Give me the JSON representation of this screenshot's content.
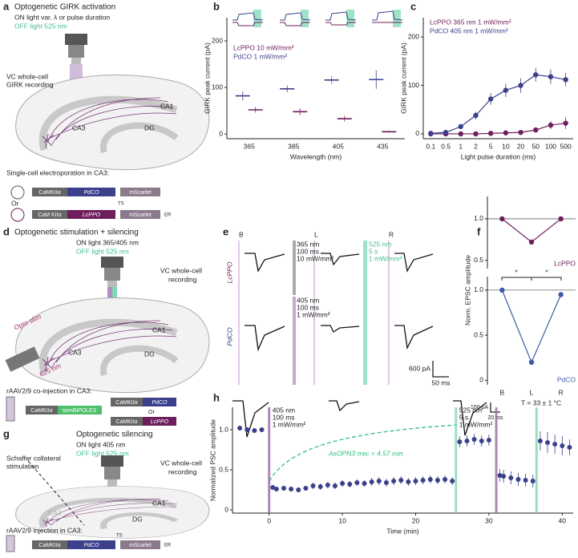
{
  "panels": {
    "a": {
      "letter": "a",
      "title": "Optogenetic GIRK activation",
      "on": "ON light var. λ or pulse duration",
      "off": "OFF light 525 nm",
      "rec1": "VC whole-cell",
      "rec2": "GIRK recording",
      "ca1": "CA1",
      "ca3": "CA3",
      "dg": "DG",
      "electro": "Single-cell electroporation in CA3:",
      "or": "Or",
      "c1": [
        "CaMKIIα",
        "PdCO",
        "mScarlet"
      ],
      "c2": [
        "CaM KIIα",
        "LcPPO",
        "mScarlet"
      ],
      "ts": "TS",
      "er": "ER"
    },
    "b": {
      "letter": "b"
    },
    "c": {
      "letter": "c"
    },
    "d": {
      "letter": "d",
      "title": "Optogenetic stimulation + silencing",
      "on": "ON light 365/405 nm",
      "off": "OFF light 525 nm",
      "rec1": "VC whole-cell",
      "rec2": "recording",
      "stim": "Opto stim",
      "nm": "625 nm",
      "ca1": "CA1",
      "ca3": "CA3",
      "dg": "DG",
      "inj": "rAAV2/9 co-injection in CA3:",
      "c1": [
        "CaMKIIα",
        "somBiPOLES"
      ],
      "c2": [
        "CaMKIIα",
        "PdCO"
      ],
      "or": "Or",
      "c3": [
        "CaMKIIα",
        "LcPPO"
      ]
    },
    "e": {
      "letter": "e",
      "B": "B",
      "L": "L",
      "R": "R",
      "lc": "LcPPO",
      "pd": "PdCO",
      "l365": [
        "365 nm",
        "100 ms",
        "10 mW/mm²"
      ],
      "l525": [
        "525 nm",
        "5 s",
        "1 mW/mm²"
      ],
      "l405": [
        "405 nm",
        "100 ms",
        "1 mW/mm²"
      ],
      "sy": "600 pA",
      "sx": "50 ms"
    },
    "f": {
      "letter": "f",
      "stars": [
        "*",
        "*"
      ]
    },
    "g": {
      "letter": "g",
      "title": "Optogenetic silencing",
      "on": "ON light 405 nm",
      "off": "OFF light 525 nm",
      "sc1": "Schaffer collateral",
      "sc2": "stimulation",
      "rec1": "VC whole-cell",
      "rec2": "recording",
      "ca1": "CA1",
      "ca3": "CA3",
      "dg": "DG",
      "inj": "rAAV2/9 injection in CA3:",
      "c1": [
        "CaMKIIα",
        "PdCO",
        "mScarlet"
      ],
      "ts": "TS",
      "er": "ER"
    },
    "h": {
      "letter": "h",
      "temp": "T = 33 ± 1 °C",
      "sy": "100 pA",
      "sx": "20 ms",
      "curve": "AsOPN3 τrec = 4.57 min"
    }
  },
  "chart_data": [
    {
      "type": "dot",
      "xlabel": "Wavelength (nm)",
      "ylabel": "GIRK peak current (pA)",
      "categories": [
        "365",
        "385",
        "405",
        "435"
      ],
      "ylim": [
        -10,
        250
      ],
      "yticks": [
        0,
        100,
        200
      ],
      "legend": "upper left",
      "series": [
        {
          "name": "LcPPO 10 mW/mm²",
          "color": "#6e1e5c",
          "values": [
            52,
            48,
            33,
            5
          ],
          "errors": [
            6,
            7,
            6,
            2
          ]
        },
        {
          "name": "PdCO 1 mW/mm²",
          "color": "#3b3f8c",
          "values": [
            82,
            97,
            116,
            117
          ],
          "errors": [
            10,
            7,
            8,
            20
          ]
        }
      ]
    },
    {
      "type": "line",
      "xlabel": "Light pulse duration (ms)",
      "ylabel": "GIRK peak current (pA)",
      "categories": [
        "0.1",
        "0.5",
        "1",
        "2",
        "5",
        "10",
        "20",
        "50",
        "100",
        "500"
      ],
      "ylim": [
        -10,
        240
      ],
      "yticks": [
        0,
        100,
        200
      ],
      "legend": "upper left",
      "series": [
        {
          "name": "LcPPO 365 nm 1 mW/mm²",
          "color": "#6e1e5c",
          "values": [
            0,
            0,
            0,
            0,
            1,
            2,
            3,
            8,
            18,
            22
          ],
          "errors": [
            1,
            1,
            1,
            1,
            2,
            2,
            3,
            5,
            8,
            12
          ]
        },
        {
          "name": "PdCO 405 nm 1 mW/mm²",
          "color": "#3b3f8c",
          "values": [
            1,
            3,
            15,
            38,
            72,
            90,
            100,
            122,
            118,
            112
          ],
          "errors": [
            1,
            2,
            5,
            8,
            12,
            14,
            15,
            14,
            15,
            14
          ]
        }
      ]
    },
    {
      "type": "line",
      "categories": [
        null,
        null,
        null
      ],
      "ylim": [
        0.4,
        1.27
      ],
      "yticks": [
        0.5,
        {
          "value": 1,
          "label": "1.0"
        }
      ],
      "legend": "lower right",
      "series": [
        {
          "name": "LcPPO",
          "color": "#6e1e5c",
          "values": [
            1.0,
            0.72,
            1.0
          ]
        }
      ]
    },
    {
      "type": "line",
      "ylabel": "Norm. EPSC amplitude",
      "categories": [
        "B",
        "L",
        "R"
      ],
      "ylim": [
        -0.05,
        1.15
      ],
      "yticks": [
        0,
        0.5,
        {
          "value": 1,
          "label": "1.0"
        }
      ],
      "legend": "lower right",
      "series": [
        {
          "name": "PdCO",
          "color": "#3b5aa8",
          "values": [
            1.0,
            0.2,
            0.95
          ]
        }
      ]
    },
    {
      "type": "scatter",
      "xlabel": "Time (min)",
      "ylabel": "Normalized PSC amplitude",
      "xlim": [
        -5,
        41.5
      ],
      "xticks": [
        0,
        10,
        20,
        30,
        40
      ],
      "ylim": [
        -0.04,
        1.28
      ],
      "yticks": [
        0,
        0.5,
        {
          "value": 1,
          "label": "1.0"
        }
      ],
      "annotations": [
        {
          "x": 0,
          "color": "#9b6aa8",
          "lines": [
            "405 nm",
            "100 ms",
            "1 mW/mm²"
          ]
        },
        {
          "x": 25.5,
          "color": "#7fd9b5",
          "lines": [
            "525 nm",
            "5 s",
            "1 mW/mm²"
          ]
        },
        {
          "x": 31,
          "color": "#9b6aa8",
          "lines": []
        },
        {
          "x": 36.5,
          "color": "#7fd9b5",
          "lines": []
        }
      ],
      "series": [
        {
          "color": "#3b3f8c",
          "x": [
            -4,
            -3,
            -2,
            -1,
            0.5,
            1,
            2,
            3,
            4,
            5,
            6,
            7,
            8,
            9,
            10,
            11,
            12,
            13,
            14,
            15,
            16,
            17,
            18,
            19,
            20,
            21,
            22,
            23,
            24,
            25,
            26,
            27,
            28,
            29,
            30,
            31.5,
            32,
            33,
            34,
            35,
            36,
            37,
            38,
            39,
            40,
            41
          ],
          "values": [
            1.02,
            1.0,
            0.99,
            1.0,
            0.28,
            0.26,
            0.27,
            0.26,
            0.25,
            0.27,
            0.3,
            0.29,
            0.31,
            0.3,
            0.33,
            0.32,
            0.34,
            0.33,
            0.35,
            0.36,
            0.34,
            0.36,
            0.37,
            0.35,
            0.36,
            0.37,
            0.38,
            0.37,
            0.38,
            0.36,
            0.85,
            0.86,
            0.88,
            0.86,
            0.87,
            0.43,
            0.42,
            0.4,
            0.38,
            0.37,
            0.36,
            0.86,
            0.84,
            0.82,
            0.8,
            0.78
          ],
          "errors": [
            0.03,
            0.03,
            0.03,
            0.03,
            0.03,
            0.03,
            0.03,
            0.03,
            0.03,
            0.03,
            0.04,
            0.04,
            0.04,
            0.04,
            0.04,
            0.04,
            0.04,
            0.04,
            0.05,
            0.05,
            0.05,
            0.05,
            0.05,
            0.05,
            0.05,
            0.05,
            0.05,
            0.05,
            0.05,
            0.05,
            0.07,
            0.07,
            0.07,
            0.07,
            0.07,
            0.08,
            0.08,
            0.08,
            0.08,
            0.08,
            0.08,
            0.12,
            0.13,
            0.12,
            0.12,
            0.1
          ]
        }
      ]
    }
  ]
}
